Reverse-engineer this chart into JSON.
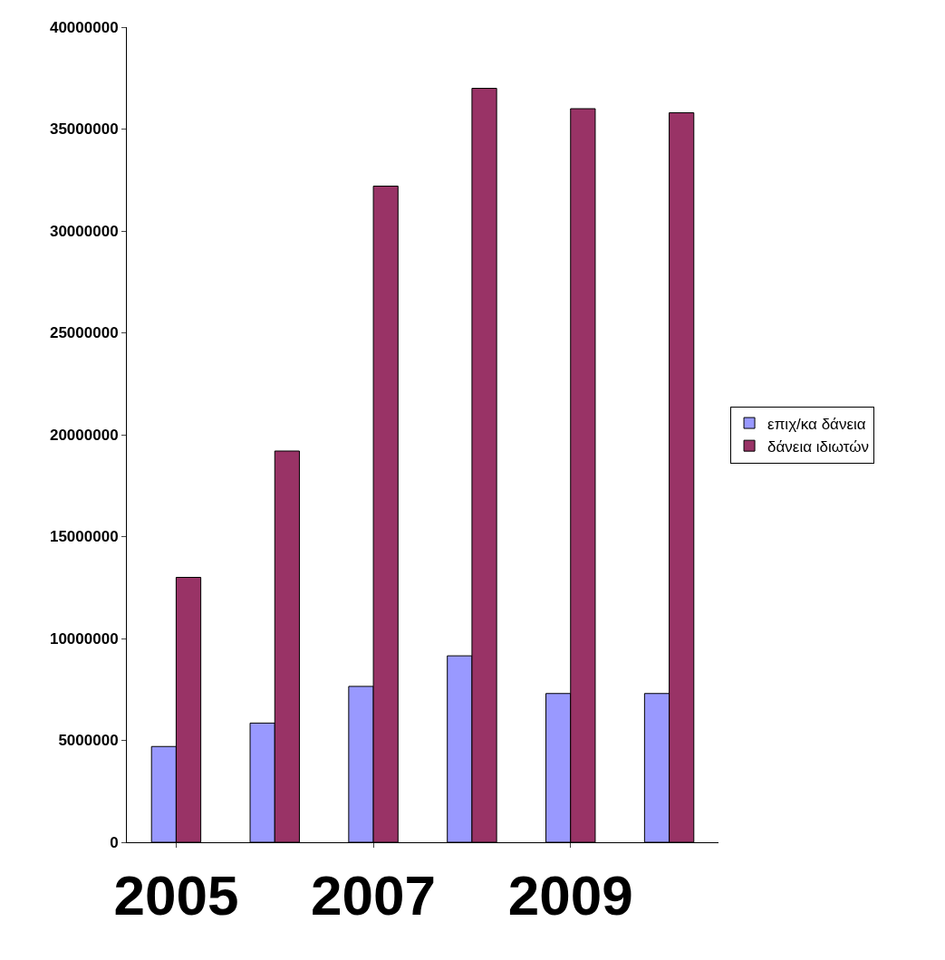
{
  "chart_data": {
    "type": "bar",
    "categories": [
      "2005",
      null,
      "2007",
      null,
      "2009",
      null
    ],
    "series": [
      {
        "name": "επιχ/κα δάνεια",
        "color": "#9999ff",
        "values": [
          4700000,
          5850000,
          7650000,
          9150000,
          7300000,
          7300000
        ]
      },
      {
        "name": "δάνεια ιδιωτών",
        "color": "#993366",
        "values": [
          13000000,
          19200000,
          32200000,
          37000000,
          36000000,
          35800000
        ]
      }
    ],
    "ylim": [
      0,
      40000000
    ],
    "yticks": [
      0,
      5000000,
      10000000,
      15000000,
      20000000,
      25000000,
      30000000,
      35000000,
      40000000
    ],
    "legend": "right"
  }
}
